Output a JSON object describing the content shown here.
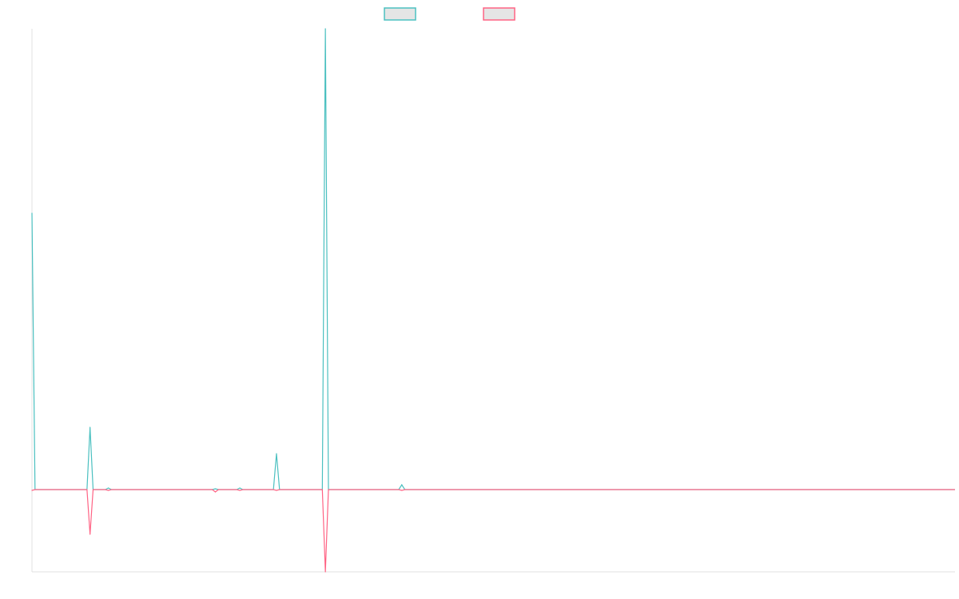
{
  "chart_data": {
    "type": "line",
    "title": "",
    "xlabel": "",
    "ylabel": "",
    "point_count": 303,
    "ylim": [
      -103,
      577
    ],
    "grid": false,
    "legend_position": "top",
    "series": [
      {
        "color": "#4bc0c0",
        "legend_fill": "#e5e5e5",
        "nonzero_points": [
          [
            0,
            346
          ],
          [
            19,
            78
          ],
          [
            25,
            2
          ],
          [
            60,
            1
          ],
          [
            68,
            2
          ],
          [
            80,
            45
          ],
          [
            96,
            577
          ],
          [
            121,
            6
          ]
        ]
      },
      {
        "color": "#ff6384",
        "legend_fill": "#e5e5e5",
        "nonzero_points": [
          [
            0,
            -1
          ],
          [
            19,
            -56
          ],
          [
            25,
            -1
          ],
          [
            60,
            -3
          ],
          [
            68,
            -1
          ],
          [
            80,
            -1
          ],
          [
            96,
            -103
          ],
          [
            121,
            -1
          ]
        ]
      }
    ],
    "axis_color": "#e0e0e0"
  }
}
